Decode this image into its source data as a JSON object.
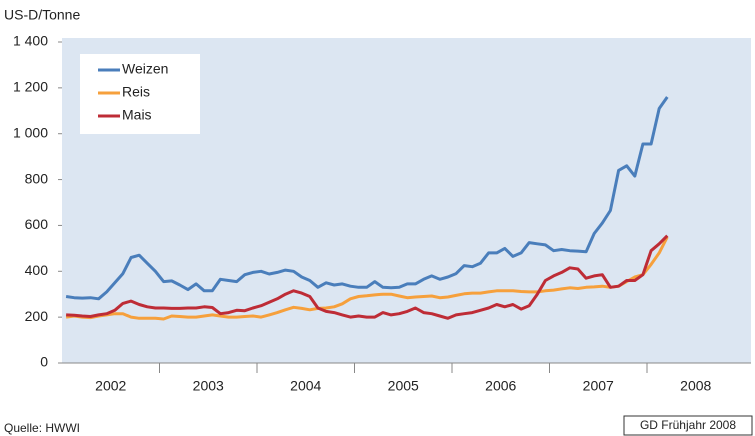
{
  "chart_data": {
    "type": "line",
    "y_label": "US-D/Tonne",
    "source": "Quelle: HWWI",
    "credit": "GD Frühjahr 2008",
    "categories": [
      "2002",
      "2003",
      "2004",
      "2005",
      "2006",
      "2007",
      "2008"
    ],
    "x": [
      "2002-01",
      "2002-02",
      "2002-03",
      "2002-04",
      "2002-05",
      "2002-06",
      "2002-07",
      "2002-08",
      "2002-09",
      "2002-10",
      "2002-11",
      "2002-12",
      "2003-01",
      "2003-02",
      "2003-03",
      "2003-04",
      "2003-05",
      "2003-06",
      "2003-07",
      "2003-08",
      "2003-09",
      "2003-10",
      "2003-11",
      "2003-12",
      "2004-01",
      "2004-02",
      "2004-03",
      "2004-04",
      "2004-05",
      "2004-06",
      "2004-07",
      "2004-08",
      "2004-09",
      "2004-10",
      "2004-11",
      "2004-12",
      "2005-01",
      "2005-02",
      "2005-03",
      "2005-04",
      "2005-05",
      "2005-06",
      "2005-07",
      "2005-08",
      "2005-09",
      "2005-10",
      "2005-11",
      "2005-12",
      "2006-01",
      "2006-02",
      "2006-03",
      "2006-04",
      "2006-05",
      "2006-06",
      "2006-07",
      "2006-08",
      "2006-09",
      "2006-10",
      "2006-11",
      "2006-12",
      "2007-01",
      "2007-02",
      "2007-03",
      "2007-04",
      "2007-05",
      "2007-06",
      "2007-07",
      "2007-08",
      "2007-09",
      "2007-10",
      "2007-11",
      "2007-12",
      "2008-01",
      "2008-02",
      "2008-03"
    ],
    "xlim": [
      "2002-01",
      "2009-01"
    ],
    "series": [
      {
        "name": "Weizen",
        "color": "#4a7ebb",
        "values": [
          290,
          285,
          283,
          285,
          280,
          310,
          350,
          390,
          460,
          470,
          435,
          400,
          355,
          358,
          340,
          320,
          345,
          315,
          315,
          365,
          360,
          355,
          385,
          395,
          400,
          388,
          395,
          405,
          400,
          375,
          360,
          330,
          350,
          340,
          345,
          335,
          330,
          330,
          355,
          330,
          328,
          330,
          345,
          345,
          365,
          380,
          365,
          375,
          390,
          425,
          420,
          435,
          480,
          480,
          500,
          465,
          480,
          525,
          520,
          515,
          490,
          495,
          490,
          488,
          485,
          565,
          610,
          665,
          840,
          860,
          815,
          955,
          955,
          1110,
          1160
        ]
      },
      {
        "name": "Reis",
        "color": "#f6a03c",
        "values": [
          200,
          205,
          200,
          198,
          205,
          210,
          215,
          215,
          200,
          195,
          195,
          195,
          192,
          205,
          203,
          200,
          200,
          205,
          210,
          205,
          200,
          200,
          203,
          205,
          200,
          210,
          220,
          232,
          243,
          238,
          232,
          238,
          240,
          245,
          258,
          280,
          290,
          293,
          297,
          300,
          300,
          292,
          285,
          288,
          290,
          292,
          285,
          288,
          295,
          302,
          305,
          305,
          310,
          315,
          315,
          315,
          312,
          310,
          310,
          315,
          318,
          323,
          328,
          325,
          330,
          332,
          335,
          330,
          335,
          355,
          375,
          385,
          430,
          480,
          550
        ]
      },
      {
        "name": "Mais",
        "color": "#be2c36",
        "values": [
          210,
          208,
          205,
          203,
          210,
          215,
          230,
          260,
          270,
          255,
          245,
          240,
          240,
          238,
          238,
          240,
          240,
          245,
          242,
          215,
          220,
          230,
          228,
          240,
          250,
          265,
          280,
          300,
          315,
          305,
          290,
          240,
          225,
          220,
          210,
          200,
          205,
          200,
          200,
          220,
          210,
          215,
          225,
          240,
          220,
          215,
          205,
          195,
          210,
          215,
          220,
          230,
          240,
          255,
          245,
          255,
          235,
          250,
          300,
          360,
          380,
          395,
          415,
          410,
          370,
          380,
          385,
          330,
          335,
          360,
          360,
          385,
          490,
          520,
          555
        ]
      }
    ],
    "ylim": [
      0,
      1400
    ],
    "yticks": [
      0,
      200,
      400,
      600,
      800,
      {
        "value": 1000,
        "label": "1 000"
      },
      {
        "value": 1200,
        "label": "1 200"
      },
      {
        "value": 1400,
        "label": "1 400"
      }
    ],
    "legend": "upper-left"
  }
}
